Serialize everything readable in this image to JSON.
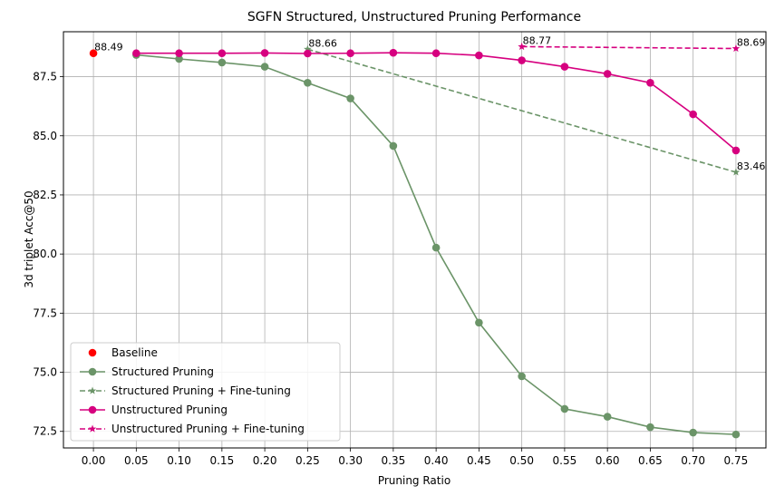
{
  "chart_data": {
    "type": "line",
    "title": "SGFN Structured, Unstructured Pruning Performance",
    "xlabel": "Pruning Ratio",
    "ylabel": "3d triplet Acc@50",
    "xlim": [
      -0.035,
      0.785
    ],
    "ylim": [
      71.8,
      89.4
    ],
    "x_ticks": [
      "0.00",
      "0.05",
      "0.10",
      "0.15",
      "0.20",
      "0.25",
      "0.30",
      "0.35",
      "0.40",
      "0.45",
      "0.50",
      "0.55",
      "0.60",
      "0.65",
      "0.70",
      "0.75"
    ],
    "y_ticks": [
      "72.5",
      "75.0",
      "77.5",
      "80.0",
      "82.5",
      "85.0",
      "87.5"
    ],
    "grid": true,
    "legend_position": "lower-left",
    "series": [
      {
        "name": "Baseline",
        "kind": "scatter",
        "color": "#ff0000",
        "x": [
          0.0
        ],
        "y": [
          88.49
        ]
      },
      {
        "name": "Structured Pruning",
        "kind": "line",
        "marker": "circle",
        "dash": false,
        "color": "#6b9468",
        "x": [
          0.05,
          0.1,
          0.15,
          0.2,
          0.25,
          0.3,
          0.35,
          0.4,
          0.45,
          0.5,
          0.55,
          0.6,
          0.65,
          0.7,
          0.75
        ],
        "y": [
          88.42,
          88.25,
          88.1,
          87.92,
          87.24,
          86.58,
          84.57,
          80.27,
          77.1,
          74.83,
          73.45,
          73.12,
          72.68,
          72.45,
          72.37
        ]
      },
      {
        "name": "Structured Pruning + Fine-tuning",
        "kind": "line",
        "marker": "star",
        "dash": true,
        "color": "#6b9468",
        "x": [
          0.25,
          0.75
        ],
        "y": [
          88.66,
          83.46
        ]
      },
      {
        "name": "Unstructured Pruning",
        "kind": "line",
        "marker": "circle",
        "dash": false,
        "color": "#d6007f",
        "x": [
          0.05,
          0.1,
          0.15,
          0.2,
          0.25,
          0.3,
          0.35,
          0.4,
          0.45,
          0.5,
          0.55,
          0.6,
          0.65,
          0.7,
          0.75
        ],
        "y": [
          88.49,
          88.49,
          88.49,
          88.5,
          88.48,
          88.49,
          88.51,
          88.49,
          88.4,
          88.19,
          87.92,
          87.62,
          87.24,
          85.91,
          84.38
        ]
      },
      {
        "name": "Unstructured Pruning + Fine-tuning",
        "kind": "line",
        "marker": "star",
        "dash": true,
        "color": "#d6007f",
        "x": [
          0.5,
          0.75
        ],
        "y": [
          88.77,
          88.69
        ]
      }
    ],
    "annotations": [
      {
        "text": "88.49",
        "x": 0.0,
        "y": 88.49
      },
      {
        "text": "88.66",
        "x": 0.25,
        "y": 88.66
      },
      {
        "text": "88.77",
        "x": 0.5,
        "y": 88.77
      },
      {
        "text": "88.69",
        "x": 0.75,
        "y": 88.69
      },
      {
        "text": "83.46",
        "x": 0.75,
        "y": 83.46
      }
    ]
  }
}
